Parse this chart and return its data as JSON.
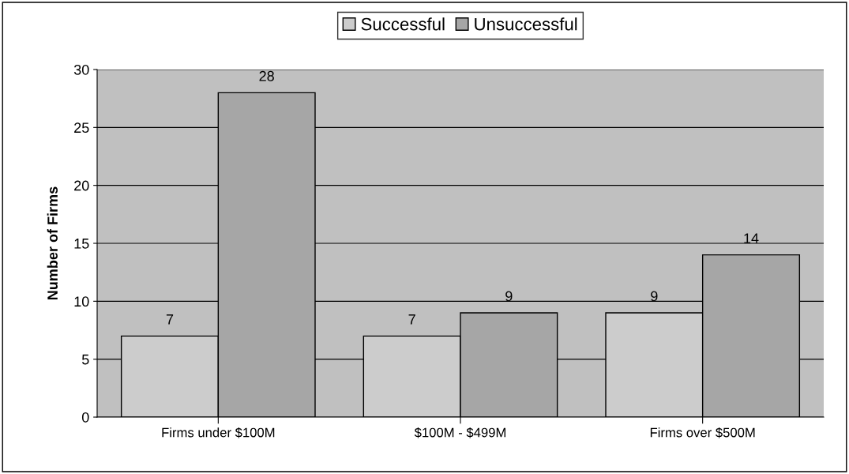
{
  "chart_data": {
    "type": "bar",
    "ylabel": "Number of Firms",
    "categories": [
      "Firms under $100M",
      "$100M - $499M",
      "Firms over $500M"
    ],
    "series": [
      {
        "name": "Successful",
        "color": "#cccccc",
        "values": [
          7,
          7,
          9
        ]
      },
      {
        "name": "Unsuccessful",
        "color": "#a6a6a6",
        "values": [
          28,
          9,
          14
        ]
      }
    ],
    "ylim": [
      0,
      30
    ],
    "yticks": [
      0,
      5,
      10,
      15,
      20,
      25,
      30
    ],
    "grid": "y",
    "legend": "top",
    "data_labels": true
  }
}
